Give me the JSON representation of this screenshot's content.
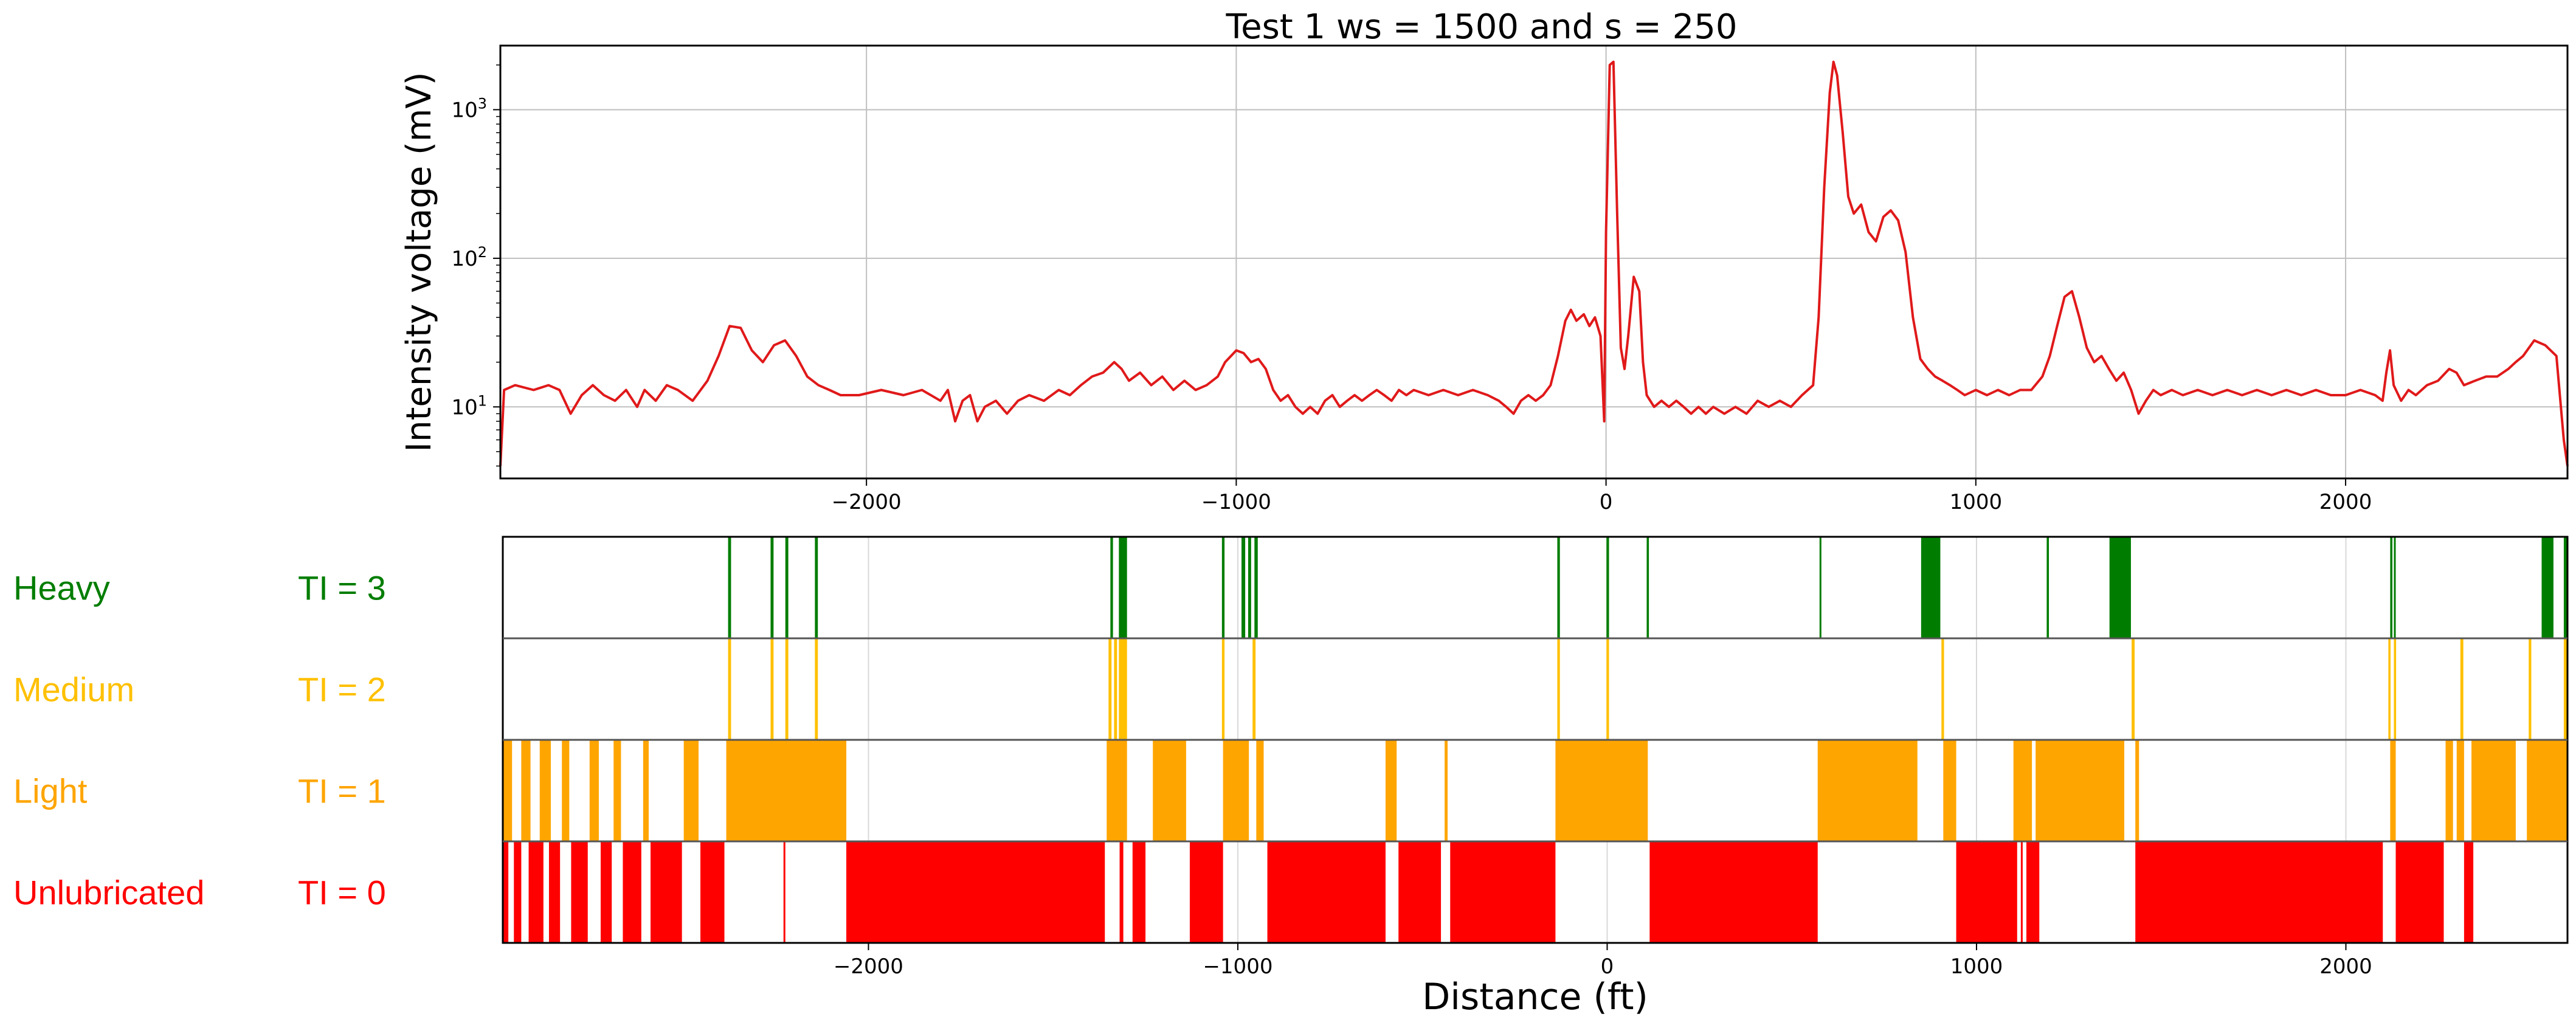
{
  "chart_data": [
    {
      "type": "line",
      "title": "Test 1  ws = 1500 and s = 250",
      "ylabel": "Intensity voltage (mV)",
      "xlabel": "",
      "yscale": "log",
      "xlim": [
        -2990,
        2600
      ],
      "ylim": [
        3.3,
        2700
      ],
      "grid": true,
      "x_ticks": [
        -2000,
        -1000,
        0,
        1000,
        2000
      ],
      "x_tick_labels": [
        "−2000",
        "−1000",
        "0",
        "1000",
        "2000"
      ],
      "y_ticks": [
        10,
        100,
        1000
      ],
      "color": "#e0191a",
      "points": [
        [
          -2990,
          4
        ],
        [
          -2980,
          13
        ],
        [
          -2950,
          14
        ],
        [
          -2900,
          13
        ],
        [
          -2860,
          14
        ],
        [
          -2830,
          13
        ],
        [
          -2800,
          9
        ],
        [
          -2770,
          12
        ],
        [
          -2740,
          14
        ],
        [
          -2710,
          12
        ],
        [
          -2680,
          11
        ],
        [
          -2650,
          13
        ],
        [
          -2620,
          10
        ],
        [
          -2600,
          13
        ],
        [
          -2570,
          11
        ],
        [
          -2540,
          14
        ],
        [
          -2510,
          13
        ],
        [
          -2470,
          11
        ],
        [
          -2430,
          15
        ],
        [
          -2400,
          22
        ],
        [
          -2370,
          35
        ],
        [
          -2340,
          34
        ],
        [
          -2310,
          24
        ],
        [
          -2280,
          20
        ],
        [
          -2250,
          26
        ],
        [
          -2220,
          28
        ],
        [
          -2190,
          22
        ],
        [
          -2160,
          16
        ],
        [
          -2130,
          14
        ],
        [
          -2100,
          13
        ],
        [
          -2070,
          12
        ],
        [
          -2020,
          12
        ],
        [
          -1960,
          13
        ],
        [
          -1900,
          12
        ],
        [
          -1850,
          13
        ],
        [
          -1800,
          11
        ],
        [
          -1780,
          13
        ],
        [
          -1760,
          8
        ],
        [
          -1740,
          11
        ],
        [
          -1720,
          12
        ],
        [
          -1700,
          8
        ],
        [
          -1680,
          10
        ],
        [
          -1650,
          11
        ],
        [
          -1620,
          9
        ],
        [
          -1590,
          11
        ],
        [
          -1560,
          12
        ],
        [
          -1520,
          11
        ],
        [
          -1480,
          13
        ],
        [
          -1450,
          12
        ],
        [
          -1420,
          14
        ],
        [
          -1390,
          16
        ],
        [
          -1360,
          17
        ],
        [
          -1330,
          20
        ],
        [
          -1310,
          18
        ],
        [
          -1290,
          15
        ],
        [
          -1260,
          17
        ],
        [
          -1230,
          14
        ],
        [
          -1200,
          16
        ],
        [
          -1170,
          13
        ],
        [
          -1140,
          15
        ],
        [
          -1110,
          13
        ],
        [
          -1080,
          14
        ],
        [
          -1050,
          16
        ],
        [
          -1030,
          20
        ],
        [
          -1000,
          24
        ],
        [
          -980,
          23
        ],
        [
          -960,
          20
        ],
        [
          -940,
          21
        ],
        [
          -920,
          18
        ],
        [
          -900,
          13
        ],
        [
          -880,
          11
        ],
        [
          -860,
          12
        ],
        [
          -840,
          10
        ],
        [
          -820,
          9
        ],
        [
          -800,
          10
        ],
        [
          -780,
          9
        ],
        [
          -760,
          11
        ],
        [
          -740,
          12
        ],
        [
          -720,
          10
        ],
        [
          -700,
          11
        ],
        [
          -680,
          12
        ],
        [
          -660,
          11
        ],
        [
          -640,
          12
        ],
        [
          -620,
          13
        ],
        [
          -600,
          12
        ],
        [
          -580,
          11
        ],
        [
          -560,
          13
        ],
        [
          -540,
          12
        ],
        [
          -520,
          13
        ],
        [
          -480,
          12
        ],
        [
          -440,
          13
        ],
        [
          -400,
          12
        ],
        [
          -360,
          13
        ],
        [
          -320,
          12
        ],
        [
          -290,
          11
        ],
        [
          -270,
          10
        ],
        [
          -250,
          9
        ],
        [
          -230,
          11
        ],
        [
          -210,
          12
        ],
        [
          -190,
          11
        ],
        [
          -170,
          12
        ],
        [
          -150,
          14
        ],
        [
          -130,
          22
        ],
        [
          -110,
          38
        ],
        [
          -95,
          45
        ],
        [
          -80,
          38
        ],
        [
          -60,
          42
        ],
        [
          -45,
          35
        ],
        [
          -30,
          40
        ],
        [
          -15,
          30
        ],
        [
          -5,
          8
        ],
        [
          0,
          150
        ],
        [
          10,
          2000
        ],
        [
          20,
          2100
        ],
        [
          30,
          200
        ],
        [
          40,
          25
        ],
        [
          50,
          18
        ],
        [
          60,
          30
        ],
        [
          75,
          75
        ],
        [
          90,
          60
        ],
        [
          100,
          20
        ],
        [
          110,
          12
        ],
        [
          130,
          10
        ],
        [
          150,
          11
        ],
        [
          170,
          10
        ],
        [
          190,
          11
        ],
        [
          210,
          10
        ],
        [
          230,
          9
        ],
        [
          250,
          10
        ],
        [
          270,
          9
        ],
        [
          290,
          10
        ],
        [
          320,
          9
        ],
        [
          350,
          10
        ],
        [
          380,
          9
        ],
        [
          410,
          11
        ],
        [
          440,
          10
        ],
        [
          470,
          11
        ],
        [
          500,
          10
        ],
        [
          530,
          12
        ],
        [
          560,
          14
        ],
        [
          575,
          40
        ],
        [
          590,
          300
        ],
        [
          605,
          1300
        ],
        [
          615,
          2100
        ],
        [
          625,
          1700
        ],
        [
          640,
          700
        ],
        [
          655,
          260
        ],
        [
          670,
          200
        ],
        [
          690,
          230
        ],
        [
          710,
          150
        ],
        [
          730,
          130
        ],
        [
          750,
          190
        ],
        [
          770,
          210
        ],
        [
          790,
          180
        ],
        [
          810,
          110
        ],
        [
          830,
          40
        ],
        [
          850,
          21
        ],
        [
          870,
          18
        ],
        [
          890,
          16
        ],
        [
          910,
          15
        ],
        [
          930,
          14
        ],
        [
          950,
          13
        ],
        [
          970,
          12
        ],
        [
          1000,
          13
        ],
        [
          1030,
          12
        ],
        [
          1060,
          13
        ],
        [
          1090,
          12
        ],
        [
          1120,
          13
        ],
        [
          1150,
          13
        ],
        [
          1180,
          16
        ],
        [
          1200,
          22
        ],
        [
          1220,
          35
        ],
        [
          1240,
          55
        ],
        [
          1260,
          60
        ],
        [
          1280,
          40
        ],
        [
          1300,
          25
        ],
        [
          1320,
          20
        ],
        [
          1340,
          22
        ],
        [
          1360,
          18
        ],
        [
          1380,
          15
        ],
        [
          1400,
          17
        ],
        [
          1420,
          13
        ],
        [
          1440,
          9
        ],
        [
          1460,
          11
        ],
        [
          1480,
          13
        ],
        [
          1500,
          12
        ],
        [
          1530,
          13
        ],
        [
          1560,
          12
        ],
        [
          1600,
          13
        ],
        [
          1640,
          12
        ],
        [
          1680,
          13
        ],
        [
          1720,
          12
        ],
        [
          1760,
          13
        ],
        [
          1800,
          12
        ],
        [
          1840,
          13
        ],
        [
          1880,
          12
        ],
        [
          1920,
          13
        ],
        [
          1960,
          12
        ],
        [
          2000,
          12
        ],
        [
          2040,
          13
        ],
        [
          2080,
          12
        ],
        [
          2100,
          11
        ],
        [
          2110,
          17
        ],
        [
          2120,
          24
        ],
        [
          2130,
          14
        ],
        [
          2150,
          11
        ],
        [
          2170,
          13
        ],
        [
          2190,
          12
        ],
        [
          2220,
          14
        ],
        [
          2250,
          15
        ],
        [
          2280,
          18
        ],
        [
          2300,
          17
        ],
        [
          2320,
          14
        ],
        [
          2350,
          15
        ],
        [
          2380,
          16
        ],
        [
          2410,
          16
        ],
        [
          2440,
          18
        ],
        [
          2460,
          20
        ],
        [
          2480,
          22
        ],
        [
          2510,
          28
        ],
        [
          2540,
          26
        ],
        [
          2570,
          22
        ],
        [
          2590,
          6
        ],
        [
          2600,
          4
        ]
      ]
    },
    {
      "type": "bar",
      "xlabel": "Distance (ft)",
      "xlim": [
        -2990,
        2600
      ],
      "x_ticks": [
        -2000,
        -1000,
        0,
        1000,
        2000
      ],
      "x_tick_labels": [
        "−2000",
        "−1000",
        "0",
        "1000",
        "2000"
      ],
      "grid": true,
      "rows": [
        {
          "category": "Heavy",
          "ti_label": "TI = 3",
          "ti_value": 3,
          "color": "#007d00",
          "segments": [
            [
              -2380,
              -2372
            ],
            [
              -2265,
              -2257
            ],
            [
              -2225,
              -2217
            ],
            [
              -2145,
              -2137
            ],
            [
              -1345,
              -1338
            ],
            [
              -1322,
              -1300
            ],
            [
              -1043,
              -1036
            ],
            [
              -990,
              -980
            ],
            [
              -972,
              -964
            ],
            [
              -955,
              -946
            ],
            [
              -135,
              -128
            ],
            [
              -2,
              5
            ],
            [
              107,
              113
            ],
            [
              575,
              580
            ],
            [
              850,
              902
            ],
            [
              1190,
              1196
            ],
            [
              1360,
              1418
            ],
            [
              2120,
              2126
            ],
            [
              2130,
              2135
            ],
            [
              2530,
              2562
            ],
            [
              2590,
              2598
            ]
          ]
        },
        {
          "category": "Medium",
          "ti_label": "TI = 2",
          "ti_value": 2,
          "color": "#ffc000",
          "segments": [
            [
              -2380,
              -2372
            ],
            [
              -2265,
              -2257
            ],
            [
              -2225,
              -2217
            ],
            [
              -2145,
              -2137
            ],
            [
              -1350,
              -1342
            ],
            [
              -1335,
              -1327
            ],
            [
              -1322,
              -1300
            ],
            [
              -1043,
              -1036
            ],
            [
              -960,
              -952
            ],
            [
              -135,
              -128
            ],
            [
              -2,
              5
            ],
            [
              905,
              912
            ],
            [
              1420,
              1428
            ],
            [
              2115,
              2121
            ],
            [
              2130,
              2136
            ],
            [
              2310,
              2318
            ],
            [
              2495,
              2502
            ],
            [
              2590,
              2598
            ]
          ]
        },
        {
          "category": "Light",
          "ti_label": "TI = 1",
          "ti_value": 1,
          "color": "#ffa500",
          "segments": [
            [
              -2990,
              -2965
            ],
            [
              -2940,
              -2915
            ],
            [
              -2890,
              -2860
            ],
            [
              -2830,
              -2810
            ],
            [
              -2755,
              -2730
            ],
            [
              -2690,
              -2670
            ],
            [
              -2610,
              -2595
            ],
            [
              -2500,
              -2460
            ],
            [
              -2385,
              -2060
            ],
            [
              -1355,
              -1300
            ],
            [
              -1230,
              -1140
            ],
            [
              -1040,
              -970
            ],
            [
              -950,
              -930
            ],
            [
              -600,
              -570
            ],
            [
              -440,
              -432
            ],
            [
              -140,
              110
            ],
            [
              570,
              840
            ],
            [
              910,
              945
            ],
            [
              1100,
              1150
            ],
            [
              1160,
              1400
            ],
            [
              1430,
              1440
            ],
            [
              2120,
              2135
            ],
            [
              2270,
              2290
            ],
            [
              2300,
              2320
            ],
            [
              2340,
              2460
            ],
            [
              2490,
              2600
            ]
          ]
        },
        {
          "category": "Unlubricated",
          "ti_label": "TI = 0",
          "ti_value": 0,
          "color": "#ff0000",
          "segments": [
            [
              -2990,
              -2975
            ],
            [
              -2960,
              -2940
            ],
            [
              -2920,
              -2880
            ],
            [
              -2865,
              -2835
            ],
            [
              -2805,
              -2760
            ],
            [
              -2725,
              -2695
            ],
            [
              -2665,
              -2615
            ],
            [
              -2590,
              -2505
            ],
            [
              -2455,
              -2390
            ],
            [
              -2230,
              -2225
            ],
            [
              -2060,
              -1360
            ],
            [
              -1320,
              -1310
            ],
            [
              -1285,
              -1250
            ],
            [
              -1130,
              -1040
            ],
            [
              -920,
              -600
            ],
            [
              -565,
              -450
            ],
            [
              -425,
              -140
            ],
            [
              115,
              570
            ],
            [
              945,
              1110
            ],
            [
              1120,
              1125
            ],
            [
              1135,
              1170
            ],
            [
              1430,
              2100
            ],
            [
              2135,
              2265
            ],
            [
              2320,
              2345
            ]
          ]
        }
      ]
    }
  ]
}
